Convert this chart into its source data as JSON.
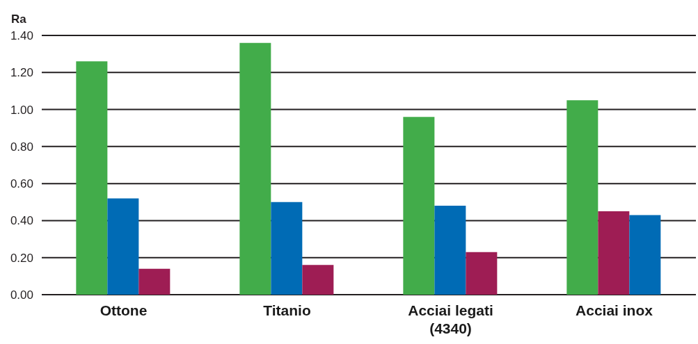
{
  "chart_data": {
    "type": "bar",
    "ylabel": "Ra",
    "categories": [
      "Ottone",
      "Titanio",
      "Acciai legati (4340)",
      "Acciai inox"
    ],
    "series": [
      {
        "color": "#42ac4a",
        "values": [
          1.26,
          1.36,
          0.96,
          1.05
        ]
      },
      {
        "colors": [
          "#006bb5",
          "#006bb5",
          "#006bb5",
          "#9e1d54"
        ],
        "values": [
          0.52,
          0.5,
          0.48,
          0.45
        ]
      },
      {
        "colors": [
          "#9e1d54",
          "#9e1d54",
          "#9e1d54",
          "#006bb5"
        ],
        "values": [
          0.14,
          0.16,
          0.23,
          0.43
        ]
      }
    ],
    "ylim": [
      0,
      1.4
    ],
    "yticks": [
      {
        "value": 0,
        "label": "0.00"
      },
      {
        "value": 0.2,
        "label": "0.20"
      },
      {
        "value": 0.4,
        "label": "0.40"
      },
      {
        "value": 0.6,
        "label": "0.60"
      },
      {
        "value": 0.8,
        "label": "0.80"
      },
      {
        "value": 1,
        "label": "1.00"
      },
      {
        "value": 1.2,
        "label": "1.20"
      },
      {
        "value": 1.4,
        "label": "1.40"
      }
    ],
    "grid": "y"
  }
}
